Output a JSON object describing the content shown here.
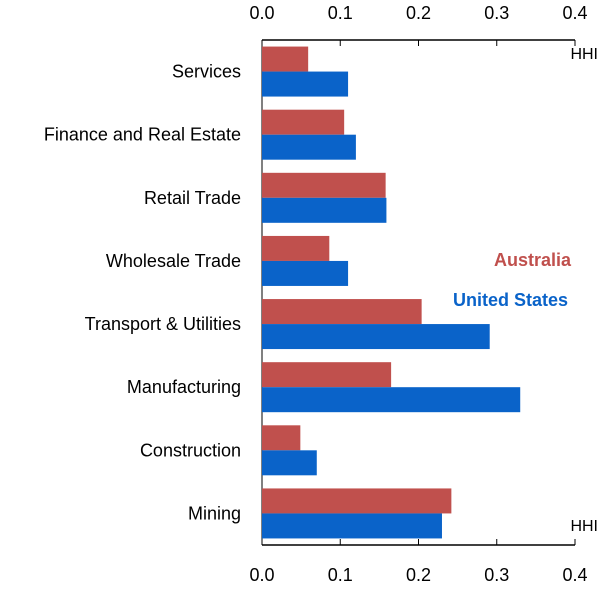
{
  "chart_data": {
    "type": "bar",
    "orientation": "horizontal",
    "unit_label_top": "HHI",
    "unit_label_bottom": "HHI",
    "xlim": [
      0,
      0.4
    ],
    "xticks": [
      "0.0",
      "0.1",
      "0.2",
      "0.3",
      "0.4"
    ],
    "xtick_values": [
      0,
      0.1,
      0.2,
      0.3,
      0.4
    ],
    "grid": false,
    "legend_placement": "right",
    "categories": [
      "Services",
      "Finance and Real Estate",
      "Retail Trade",
      "Wholesale Trade",
      "Transport & Utilities",
      "Manufacturing",
      "Construction",
      "Mining"
    ],
    "series": [
      {
        "name": "Australia",
        "color": "#c0504d",
        "values": [
          0.059,
          0.105,
          0.158,
          0.086,
          0.204,
          0.165,
          0.049,
          0.242
        ]
      },
      {
        "name": "United States",
        "color": "#0a63c9",
        "values": [
          0.11,
          0.12,
          0.159,
          0.11,
          0.291,
          0.33,
          0.07,
          0.23
        ]
      }
    ]
  }
}
